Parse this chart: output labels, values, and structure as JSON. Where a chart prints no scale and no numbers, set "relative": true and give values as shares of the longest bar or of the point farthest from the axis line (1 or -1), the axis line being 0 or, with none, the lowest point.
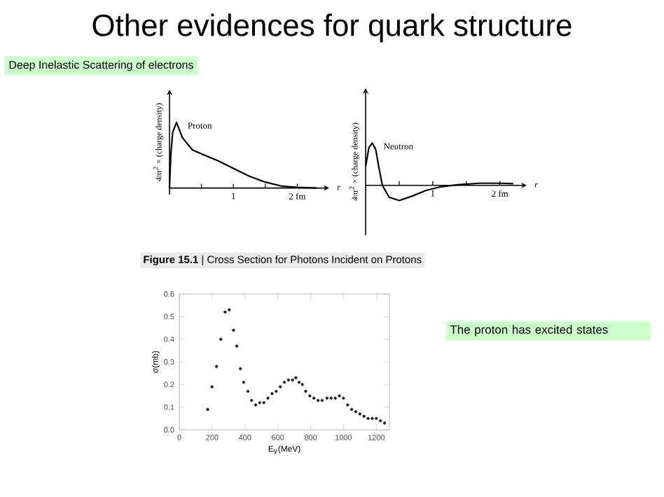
{
  "chart_data": [
    {
      "type": "line",
      "title": "Other evidences for quark structure",
      "subtitle": "Deep Inelastic Scattering of electrons",
      "relative": true,
      "xlabel": "r",
      "ylabel": "4πr$^{2}$ × (charge density)",
      "xlim": [
        0,
        2.5
      ],
      "xticks": [
        {
          "value": 0.5,
          "label": null
        },
        1,
        {
          "value": 1.5,
          "label": null
        },
        {
          "value": 2,
          "label": "2 fm"
        }
      ],
      "line_style": "solid",
      "series": [
        {
          "name": "Proton",
          "color": "#000000",
          "x": [
            0,
            0.02,
            0.05,
            0.11,
            0.2,
            0.36,
            0.5,
            0.75,
            1.0,
            1.25,
            1.5,
            1.75,
            2.0,
            2.3
          ],
          "values": [
            0,
            0.5,
            0.85,
            1,
            0.77,
            0.58,
            0.52,
            0.42,
            0.3,
            0.18,
            0.09,
            0.03,
            0.01,
            0
          ]
        }
      ]
    },
    {
      "type": "line",
      "relative": true,
      "xlabel": "r",
      "ylabel": "4πr$^{2}$ × (charge density)",
      "xlim": [
        0,
        2.4
      ],
      "xticks": [
        {
          "value": 0.5,
          "label": null
        },
        1,
        {
          "value": 1.5,
          "label": null
        },
        {
          "value": 2,
          "label": "2 fm"
        }
      ],
      "line_style": "solid",
      "series": [
        {
          "name": "Neutron",
          "color": "#000000",
          "x": [
            0,
            0.05,
            0.1,
            0.15,
            0.2,
            0.25,
            0.35,
            0.5,
            0.7,
            0.9,
            1.1,
            1.4,
            1.7,
            2.0,
            2.2
          ],
          "values": [
            0.45,
            0.9,
            1,
            0.85,
            0.4,
            0,
            -0.28,
            -0.36,
            -0.25,
            -0.12,
            -0.04,
            0.02,
            0.05,
            0.05,
            0.04
          ]
        }
      ]
    },
    {
      "type": "scatter",
      "title": "**Figure 15.1** | Cross Section for Photons Incident on Protons",
      "xlabel": "E$_{γ}$(MeV)",
      "ylabel": "σ(mb)",
      "xlim": [
        0,
        1280
      ],
      "ylim": [
        0,
        0.6
      ],
      "xticks": [
        0,
        200,
        400,
        600,
        800,
        1000,
        1200
      ],
      "yticks": [
        {
          "value": 0,
          "label": "0.0"
        },
        0.1,
        0.2,
        0.3,
        0.4,
        0.5,
        0.6
      ],
      "marker": "circle",
      "annotations": [
        "The proton has excited states"
      ],
      "series": [
        {
          "color": "#222222",
          "x": [
            173,
            199,
            227,
            253,
            279,
            304,
            330,
            350,
            372,
            392,
            418,
            440,
            465,
            490,
            515,
            540,
            565,
            590,
            615,
            640,
            665,
            690,
            710,
            730,
            750,
            770,
            795,
            820,
            845,
            870,
            900,
            925,
            950,
            975,
            1000,
            1025,
            1050,
            1075,
            1100,
            1125,
            1150,
            1175,
            1200,
            1225,
            1250
          ],
          "values": [
            0.09,
            0.19,
            0.28,
            0.4,
            0.52,
            0.53,
            0.44,
            0.37,
            0.27,
            0.21,
            0.17,
            0.13,
            0.11,
            0.12,
            0.12,
            0.14,
            0.16,
            0.17,
            0.19,
            0.21,
            0.22,
            0.22,
            0.23,
            0.21,
            0.2,
            0.17,
            0.15,
            0.14,
            0.13,
            0.13,
            0.14,
            0.14,
            0.14,
            0.15,
            0.14,
            0.11,
            0.09,
            0.08,
            0.07,
            0.06,
            0.05,
            0.05,
            0.05,
            0.04,
            0.03
          ]
        }
      ]
    }
  ]
}
